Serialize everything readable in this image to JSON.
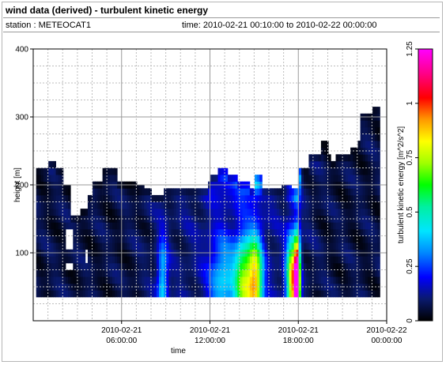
{
  "header": {
    "title": "wind data (derived) - turbulent kinetic energy",
    "station": "station : METEOCAT1",
    "time_range": "time: 2010-02-21 00:10:00 to 2010-02-22 00:00:00"
  },
  "chart_data": {
    "type": "heatmap",
    "xlabel": "time",
    "ylabel": "height [m]",
    "colorbar_label": "turbulent kinetic energy [m^2/s^2]",
    "ylim": [
      0,
      400
    ],
    "yticks": [
      100,
      200,
      300,
      400
    ],
    "xlim_hours": [
      0,
      24
    ],
    "xticks": [
      {
        "hours": 6,
        "label": [
          "2010-02-21",
          "06:00:00"
        ]
      },
      {
        "hours": 12,
        "label": [
          "2010-02-21",
          "12:00:00"
        ]
      },
      {
        "hours": 18,
        "label": [
          "2010-02-21",
          "18:00:00"
        ]
      },
      {
        "hours": 24,
        "label": [
          "2010-02-22",
          "00:00:00"
        ]
      }
    ],
    "colorbar_range": [
      0,
      1.25
    ],
    "colorbar_ticks": [
      {
        "value": 0,
        "label": "0"
      },
      {
        "value": 0.25,
        "label": "0.25"
      },
      {
        "value": 0.5,
        "label": "0.5"
      },
      {
        "value": 0.75,
        "label": "0.75"
      },
      {
        "value": 1,
        "label": "1"
      },
      {
        "value": 1.25,
        "label": "1.25"
      }
    ],
    "grid": true,
    "data_bottom_m": 35,
    "top_profile": [
      [
        0.2,
        225
      ],
      [
        1.0,
        235
      ],
      [
        1.5,
        225
      ],
      [
        2.0,
        200
      ],
      [
        2.5,
        155
      ],
      [
        3.2,
        165
      ],
      [
        3.7,
        185
      ],
      [
        4.0,
        205
      ],
      [
        4.6,
        225
      ],
      [
        5.6,
        205
      ],
      [
        7.0,
        200
      ],
      [
        7.5,
        195
      ],
      [
        8.0,
        185
      ],
      [
        8.8,
        195
      ],
      [
        11.5,
        195
      ],
      [
        11.8,
        205
      ],
      [
        12.0,
        215
      ],
      [
        12.5,
        225
      ],
      [
        13.2,
        215
      ],
      [
        13.8,
        205
      ],
      [
        14.6,
        195
      ],
      [
        15.0,
        215
      ],
      [
        15.4,
        195
      ],
      [
        16.8,
        200
      ],
      [
        17.4,
        195
      ],
      [
        18.0,
        225
      ],
      [
        18.7,
        245
      ],
      [
        19.4,
        265
      ],
      [
        19.9,
        245
      ],
      [
        20.2,
        235
      ],
      [
        20.5,
        245
      ],
      [
        21.5,
        255
      ],
      [
        21.9,
        265
      ],
      [
        22.2,
        305
      ],
      [
        23.0,
        315
      ],
      [
        23.5,
        315
      ]
    ],
    "tke_events": [
      {
        "center_h": 8.7,
        "width_h": 0.35,
        "peak": 0.32
      },
      {
        "center_h": 12.8,
        "width_h": 0.9,
        "peak": 0.28
      },
      {
        "center_h": 14.2,
        "width_h": 0.6,
        "peak": 0.55
      },
      {
        "center_h": 15.0,
        "width_h": 0.5,
        "peak": 0.72
      },
      {
        "center_h": 17.5,
        "width_h": 0.4,
        "peak": 0.78
      },
      {
        "center_h": 17.85,
        "width_h": 0.2,
        "peak": 1.1
      }
    ],
    "gaps": [
      {
        "h0": 2.2,
        "h1": 2.6,
        "z0": 105,
        "z1": 130
      },
      {
        "h0": 2.2,
        "h1": 2.6,
        "z0": 70,
        "z1": 85
      },
      {
        "h0": 3.5,
        "h1": 3.6,
        "z0": 80,
        "z1": 105
      }
    ]
  }
}
